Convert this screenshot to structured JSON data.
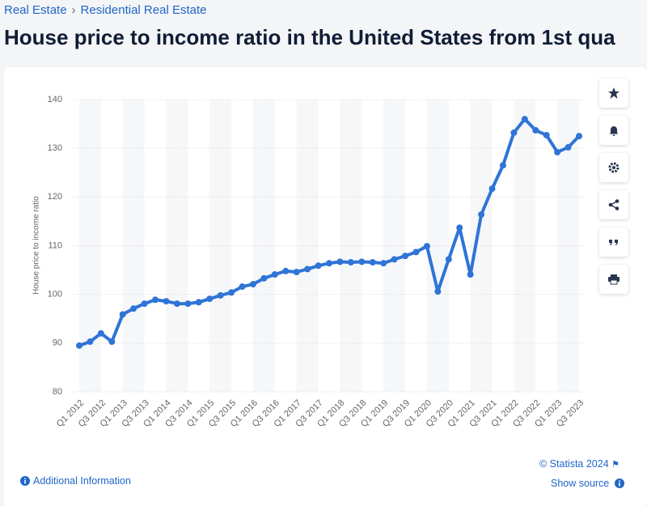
{
  "breadcrumb": [
    "Real Estate",
    "Residential Real Estate"
  ],
  "chart_data": {
    "type": "line",
    "title": "House price to income ratio in the United States from 1st qua",
    "y_label": "House price to income ratio",
    "categories": [
      "Q1 2012",
      null,
      "Q3 2012",
      null,
      "Q1 2013",
      null,
      "Q3 2013",
      null,
      "Q1 2014",
      null,
      "Q3 2014",
      null,
      "Q1 2015",
      null,
      "Q3 2015",
      null,
      "Q1 2016",
      null,
      "Q3 2016",
      null,
      "Q1 2017",
      null,
      "Q3 2017",
      null,
      "Q1 2018",
      null,
      "Q3 2018",
      null,
      "Q1 2019",
      null,
      "Q3 2019",
      null,
      "Q1 2020",
      null,
      "Q3 2020",
      null,
      "Q1 2021",
      null,
      "Q3 2021",
      null,
      "Q1 2022",
      null,
      "Q3 2022",
      null,
      "Q1 2023",
      null,
      "Q3 2023"
    ],
    "values": [
      89.5,
      90.3,
      92.0,
      90.3,
      95.9,
      97.1,
      98.1,
      98.9,
      98.6,
      98.1,
      98.1,
      98.4,
      99.1,
      99.8,
      100.4,
      101.6,
      102.1,
      103.3,
      104.1,
      104.8,
      104.6,
      105.2,
      105.9,
      106.4,
      106.7,
      106.6,
      106.7,
      106.6,
      106.4,
      107.2,
      107.9,
      108.7,
      109.9,
      100.6,
      107.2,
      113.7,
      104.1,
      116.4,
      121.7,
      126.5,
      133.2,
      136.0,
      133.7,
      132.7,
      129.2,
      130.2,
      132.5
    ],
    "color": "#2f74d6",
    "ylim": [
      80,
      140
    ],
    "yticks": [
      80,
      90,
      100,
      110,
      120,
      130,
      140
    ],
    "grid": true
  },
  "footer": {
    "copyright": "© Statista 2024",
    "info": "Additional Information",
    "source": "Show source"
  }
}
